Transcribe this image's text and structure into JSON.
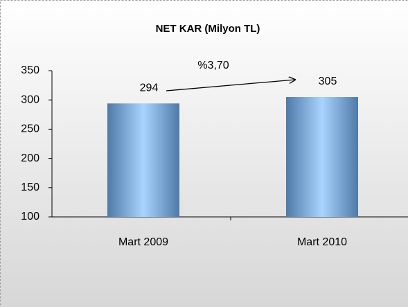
{
  "chart_data": {
    "type": "bar",
    "title": "NET KAR  (Milyon TL)",
    "categories": [
      "Mart 2009",
      "Mart 2010"
    ],
    "values": [
      294,
      305
    ],
    "color": "#6f9fd0",
    "ylim": [
      100,
      350
    ],
    "yticks": [
      100,
      150,
      200,
      250,
      300,
      350
    ],
    "grid": false,
    "annotation": "%3,70"
  }
}
